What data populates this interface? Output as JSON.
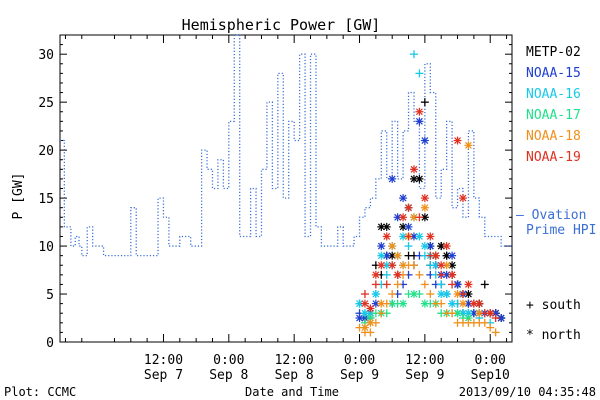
{
  "chart_data": {
    "type": "scatter",
    "title": "Hemispheric Power [GW]",
    "ylabel": "P [GW]",
    "xlabel": "Date and Time",
    "ylim": [
      0,
      32
    ],
    "yticks": [
      0,
      5,
      10,
      15,
      20,
      25,
      30
    ],
    "x_unit": "hours since Sep 7 00:00",
    "xlim": [
      -7,
      76
    ],
    "xticks": [
      {
        "x": 12,
        "line1": "12:00",
        "line2": "Sep 7"
      },
      {
        "x": 24,
        "line1": "0:00",
        "line2": "Sep 8"
      },
      {
        "x": 36,
        "line1": "12:00",
        "line2": "Sep 8"
      },
      {
        "x": 48,
        "line1": "0:00",
        "line2": "Sep 9"
      },
      {
        "x": 60,
        "line1": "12:00",
        "line2": "Sep 9"
      },
      {
        "x": 72,
        "line1": "0:00",
        "line2": "Sep10"
      }
    ],
    "footer_left": "Plot: CCMC",
    "footer_right": "2013/09/10 04:35:48",
    "ovation": {
      "label_line1": "— Ovation",
      "label_line2": "Prime HPI",
      "color": "#3a6fd8",
      "steps": [
        [
          -7,
          21
        ],
        [
          -6.2,
          12
        ],
        [
          -5,
          10
        ],
        [
          -4.2,
          11
        ],
        [
          -3.5,
          10
        ],
        [
          -3,
          9
        ],
        [
          -2,
          12
        ],
        [
          -1,
          10
        ],
        [
          0,
          10
        ],
        [
          1,
          9
        ],
        [
          3,
          9
        ],
        [
          4,
          9
        ],
        [
          6,
          14
        ],
        [
          7,
          9
        ],
        [
          9,
          9
        ],
        [
          10,
          9
        ],
        [
          11,
          15
        ],
        [
          12,
          13
        ],
        [
          13,
          10
        ],
        [
          14,
          10
        ],
        [
          15,
          11
        ],
        [
          16,
          11
        ],
        [
          17,
          10
        ],
        [
          19,
          20
        ],
        [
          20,
          18
        ],
        [
          21,
          16
        ],
        [
          22,
          19
        ],
        [
          23,
          16
        ],
        [
          24,
          23
        ],
        [
          25,
          32
        ],
        [
          26,
          11
        ],
        [
          27,
          11
        ],
        [
          28,
          16
        ],
        [
          29,
          11
        ],
        [
          30,
          18
        ],
        [
          31,
          25
        ],
        [
          32,
          16
        ],
        [
          33,
          28
        ],
        [
          34,
          15
        ],
        [
          35,
          23
        ],
        [
          36,
          21
        ],
        [
          37,
          30
        ],
        [
          38,
          11
        ],
        [
          39,
          30
        ],
        [
          40,
          12
        ],
        [
          41,
          10
        ],
        [
          42,
          10
        ],
        [
          44,
          12
        ],
        [
          45,
          10
        ],
        [
          46,
          10
        ],
        [
          47,
          11
        ],
        [
          48,
          13
        ],
        [
          49,
          14
        ],
        [
          50,
          15
        ],
        [
          51,
          17
        ],
        [
          52,
          22
        ],
        [
          53,
          17
        ],
        [
          54,
          23
        ],
        [
          55,
          17
        ],
        [
          56,
          22
        ],
        [
          57,
          26
        ],
        [
          58,
          23
        ],
        [
          59,
          16
        ],
        [
          60,
          29
        ],
        [
          61,
          26
        ],
        [
          62,
          15
        ],
        [
          63,
          18
        ],
        [
          64,
          23
        ],
        [
          65,
          14
        ],
        [
          66,
          16
        ],
        [
          67,
          13
        ],
        [
          68,
          22
        ],
        [
          69,
          15
        ],
        [
          70,
          13
        ],
        [
          71,
          11
        ],
        [
          72,
          11
        ],
        [
          73,
          11
        ],
        [
          74,
          10
        ],
        [
          75,
          10
        ],
        [
          76,
          10
        ]
      ]
    },
    "series": [
      {
        "name": "METP-02",
        "color": "#000000",
        "south": [
          [
            51,
            8
          ],
          [
            52,
            7
          ],
          [
            53,
            9
          ],
          [
            55,
            7
          ],
          [
            57,
            9
          ],
          [
            58,
            9
          ],
          [
            60,
            25
          ],
          [
            61,
            8
          ],
          [
            62,
            8
          ],
          [
            63,
            10
          ],
          [
            64,
            9
          ],
          [
            65,
            7
          ],
          [
            66,
            6
          ],
          [
            67,
            3
          ],
          [
            68,
            4
          ],
          [
            69,
            3
          ],
          [
            70,
            4
          ],
          [
            71,
            6
          ],
          [
            72,
            3
          ],
          [
            73,
            3
          ],
          [
            74,
            2.5
          ]
        ],
        "north": [
          [
            49,
            2.5
          ],
          [
            50,
            3
          ],
          [
            52,
            12
          ],
          [
            53,
            12
          ],
          [
            54,
            9
          ],
          [
            56,
            12
          ],
          [
            57,
            14
          ],
          [
            58,
            17
          ],
          [
            59,
            17
          ],
          [
            60,
            13
          ],
          [
            61,
            10
          ],
          [
            62,
            9
          ],
          [
            63,
            10
          ],
          [
            64,
            9
          ],
          [
            65,
            8
          ],
          [
            66,
            6
          ],
          [
            67,
            5
          ],
          [
            68,
            5
          ],
          [
            70,
            4
          ],
          [
            72,
            3
          ],
          [
            73,
            3
          ],
          [
            74,
            2.5
          ]
        ]
      },
      {
        "name": "NOAA-15",
        "color": "#1f3fd0",
        "south": [
          [
            48,
            3
          ],
          [
            49,
            2.5
          ],
          [
            50,
            2.5
          ],
          [
            52,
            3
          ],
          [
            54,
            4
          ],
          [
            55,
            5
          ],
          [
            56,
            6
          ],
          [
            57,
            7
          ],
          [
            58,
            8
          ],
          [
            59,
            9
          ],
          [
            61,
            7
          ],
          [
            62,
            6
          ],
          [
            63,
            6
          ],
          [
            64,
            5
          ],
          [
            66,
            4
          ],
          [
            68,
            3
          ],
          [
            70,
            3
          ],
          [
            72,
            3
          ]
        ],
        "north": [
          [
            48,
            2.5
          ],
          [
            49,
            2.5
          ],
          [
            50,
            3
          ],
          [
            51,
            4
          ],
          [
            52,
            10
          ],
          [
            53,
            9
          ],
          [
            54,
            17
          ],
          [
            55,
            13
          ],
          [
            56,
            15
          ],
          [
            57,
            12
          ],
          [
            58,
            11
          ],
          [
            59,
            23
          ],
          [
            60,
            21
          ],
          [
            61,
            10
          ],
          [
            62,
            8
          ],
          [
            63,
            7
          ],
          [
            64,
            7
          ],
          [
            65,
            9
          ],
          [
            66,
            6
          ],
          [
            67,
            5
          ],
          [
            68,
            4
          ],
          [
            69,
            3
          ],
          [
            70,
            3
          ],
          [
            71,
            3
          ],
          [
            72,
            3
          ],
          [
            73,
            3
          ],
          [
            74,
            2.5
          ]
        ]
      },
      {
        "name": "NOAA-16",
        "color": "#18c8e8",
        "south": [
          [
            48,
            4
          ],
          [
            49,
            3
          ],
          [
            50,
            3
          ],
          [
            51,
            5
          ],
          [
            52,
            6
          ],
          [
            53,
            7
          ],
          [
            54,
            8
          ],
          [
            55,
            7
          ],
          [
            56,
            8
          ],
          [
            57,
            10
          ],
          [
            58,
            30
          ],
          [
            59,
            28
          ],
          [
            60,
            9
          ],
          [
            61,
            8
          ],
          [
            62,
            7
          ],
          [
            63,
            6
          ],
          [
            64,
            5
          ],
          [
            65,
            4
          ],
          [
            66,
            4
          ],
          [
            67,
            3
          ],
          [
            68,
            3
          ],
          [
            70,
            2.5
          ],
          [
            72,
            2
          ]
        ],
        "north": [
          [
            48,
            4
          ],
          [
            49,
            3
          ],
          [
            50,
            3
          ],
          [
            51,
            5
          ],
          [
            52,
            9
          ],
          [
            53,
            8
          ],
          [
            54,
            10
          ],
          [
            55,
            9
          ],
          [
            56,
            11
          ],
          [
            57,
            14
          ],
          [
            58,
            13
          ],
          [
            59,
            11
          ],
          [
            60,
            10
          ],
          [
            61,
            9
          ],
          [
            62,
            8
          ],
          [
            63,
            5
          ],
          [
            64,
            5
          ],
          [
            65,
            4
          ],
          [
            66,
            3
          ],
          [
            67,
            3
          ],
          [
            68,
            3
          ],
          [
            70,
            3
          ]
        ]
      },
      {
        "name": "NOAA-17",
        "color": "#22e08a",
        "south": [
          [
            49,
            2
          ],
          [
            51,
            3
          ],
          [
            53,
            3
          ],
          [
            55,
            4
          ],
          [
            57,
            5
          ],
          [
            59,
            5
          ],
          [
            61,
            4
          ],
          [
            63,
            3
          ],
          [
            65,
            3
          ],
          [
            67,
            2.5
          ]
        ],
        "north": [
          [
            50,
            2.5
          ],
          [
            52,
            3
          ],
          [
            54,
            4
          ],
          [
            56,
            4
          ],
          [
            58,
            5
          ],
          [
            60,
            4
          ],
          [
            62,
            4
          ],
          [
            64,
            3
          ],
          [
            66,
            3
          ],
          [
            68,
            2.5
          ]
        ]
      },
      {
        "name": "NOAA-18",
        "color": "#f0901a",
        "south": [
          [
            48,
            1.5
          ],
          [
            49,
            1
          ],
          [
            50,
            1
          ],
          [
            51,
            2
          ],
          [
            52,
            3
          ],
          [
            53,
            4
          ],
          [
            54,
            5
          ],
          [
            55,
            6
          ],
          [
            56,
            7
          ],
          [
            57,
            8
          ],
          [
            58,
            8
          ],
          [
            59,
            7
          ],
          [
            60,
            6
          ],
          [
            61,
            5
          ],
          [
            62,
            4
          ],
          [
            63,
            4
          ],
          [
            64,
            3
          ],
          [
            65,
            3
          ],
          [
            66,
            2
          ],
          [
            67,
            2
          ],
          [
            68,
            2
          ],
          [
            69,
            2
          ],
          [
            70,
            2
          ],
          [
            71,
            2
          ],
          [
            72,
            1.5
          ],
          [
            73,
            1
          ]
        ],
        "north": [
          [
            49,
            1.5
          ],
          [
            50,
            2
          ],
          [
            52,
            4
          ],
          [
            54,
            10
          ],
          [
            55,
            9
          ],
          [
            56,
            8
          ],
          [
            57,
            11
          ],
          [
            58,
            13
          ],
          [
            60,
            14
          ],
          [
            62,
            9
          ],
          [
            64,
            8
          ],
          [
            66,
            5
          ],
          [
            67,
            4
          ],
          [
            68,
            20.5
          ],
          [
            70,
            3
          ],
          [
            72,
            3
          ]
        ]
      },
      {
        "name": "NOAA-19",
        "color": "#e03020",
        "south": [
          [
            49,
            5
          ],
          [
            51,
            6
          ],
          [
            53,
            6
          ],
          [
            55,
            7
          ],
          [
            57,
            11
          ],
          [
            59,
            13
          ],
          [
            61,
            9
          ],
          [
            63,
            7
          ],
          [
            65,
            6
          ],
          [
            67,
            5
          ],
          [
            69,
            4
          ],
          [
            71,
            3
          ],
          [
            73,
            2.5
          ]
        ],
        "north": [
          [
            49,
            4
          ],
          [
            50,
            3.5
          ],
          [
            51,
            7
          ],
          [
            52,
            8
          ],
          [
            53,
            11
          ],
          [
            54,
            8
          ],
          [
            55,
            7
          ],
          [
            56,
            13
          ],
          [
            57,
            14
          ],
          [
            58,
            18
          ],
          [
            59,
            24
          ],
          [
            60,
            15
          ],
          [
            61,
            11
          ],
          [
            62,
            9
          ],
          [
            63,
            8
          ],
          [
            64,
            10
          ],
          [
            65,
            7
          ],
          [
            66,
            21
          ],
          [
            67,
            15
          ],
          [
            68,
            6
          ],
          [
            69,
            4
          ],
          [
            70,
            4
          ],
          [
            72,
            3
          ]
        ]
      }
    ],
    "marker_legend": [
      {
        "symbol": "+",
        "label": "south"
      },
      {
        "symbol": "*",
        "label": "north"
      }
    ]
  }
}
